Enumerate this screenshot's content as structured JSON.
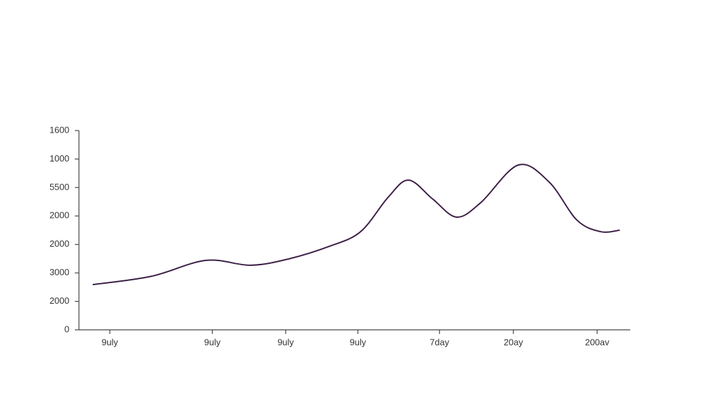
{
  "chart_data": {
    "type": "line",
    "x": [
      2.5,
      13.1,
      23.0,
      31.1,
      38.0,
      45.5,
      51.1,
      56.1,
      59.8,
      64.2,
      68.5,
      72.9,
      79.7,
      85.3,
      90.3,
      94.6,
      98.1
    ],
    "series": [
      {
        "color": "#3d1f47",
        "values": [
          1.59,
          1.88,
          2.44,
          2.27,
          2.49,
          2.94,
          3.45,
          4.66,
          5.26,
          4.59,
          3.96,
          4.47,
          5.79,
          5.19,
          3.86,
          3.45,
          3.5
        ]
      }
    ],
    "xlim": [
      0,
      100
    ],
    "xticks": [
      {
        "value": 5.6,
        "label": "9uly"
      },
      {
        "value": 24.2,
        "label": "9uly"
      },
      {
        "value": 37.5,
        "label": "9uly"
      },
      {
        "value": 50.6,
        "label": "9uly"
      },
      {
        "value": 65.4,
        "label": "7day"
      },
      {
        "value": 78.8,
        "label": "20ay"
      },
      {
        "value": 94.0,
        "label": "200av"
      }
    ],
    "ylim": [
      0,
      7
    ],
    "yticks": [
      {
        "value": 0,
        "label": "0"
      },
      {
        "value": 1,
        "label": "2000"
      },
      {
        "value": 2,
        "label": "3000"
      },
      {
        "value": 3,
        "label": "2000"
      },
      {
        "value": 4,
        "label": "2000"
      },
      {
        "value": 5,
        "label": "5500"
      },
      {
        "value": 6,
        "label": "1000"
      },
      {
        "value": 7,
        "label": "1600"
      }
    ]
  }
}
